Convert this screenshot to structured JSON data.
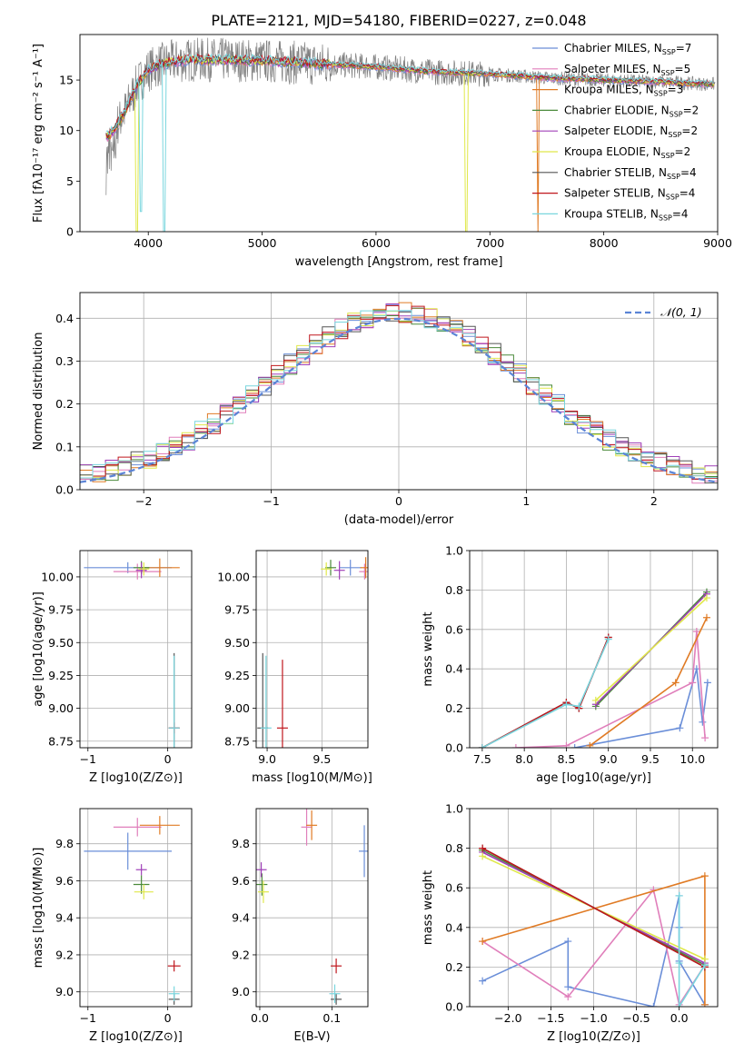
{
  "title": "PLATE=2121, MJD=54180, FIBERID=0227, z=0.048",
  "colors": {
    "c1": "#6a8ed8",
    "c2": "#e07fbb",
    "c3": "#e07b25",
    "c4": "#4a8a3a",
    "c5": "#a040b8",
    "c6": "#e0e84a",
    "c7": "#555555",
    "c8": "#c0171d",
    "c9": "#79d6de"
  },
  "series": [
    {
      "name": "Chabrier MILES",
      "nssp": "7",
      "color": "c1"
    },
    {
      "name": "Salpeter MILES",
      "nssp": "5",
      "color": "c2"
    },
    {
      "name": "Kroupa MILES",
      "nssp": "3",
      "color": "c3"
    },
    {
      "name": "Chabrier ELODIE",
      "nssp": "2",
      "color": "c4"
    },
    {
      "name": "Salpeter ELODIE",
      "nssp": "2",
      "color": "c5"
    },
    {
      "name": "Kroupa ELODIE",
      "nssp": "2",
      "color": "c6"
    },
    {
      "name": "Chabrier STELIB",
      "nssp": "4",
      "color": "c7"
    },
    {
      "name": "Salpeter STELIB",
      "nssp": "4",
      "color": "c8"
    },
    {
      "name": "Kroupa STELIB",
      "nssp": "4",
      "color": "c9"
    }
  ],
  "chart_data": [
    {
      "id": "spectrum",
      "type": "line",
      "xlabel": "wavelength [Angstrom, rest frame]",
      "ylabel": "Flux [fλ10⁻¹⁷ erg cm⁻² s⁻¹ A⁻¹]",
      "xlim": [
        3400,
        9000
      ],
      "ylim": [
        0,
        19.5
      ],
      "xticks": [
        4000,
        5000,
        6000,
        7000,
        8000,
        9000
      ],
      "yticks": [
        0,
        5,
        10,
        15
      ],
      "legend": "top-right",
      "spectrum_profile": {
        "x": [
          3650,
          3700,
          3800,
          3900,
          4000,
          4100,
          4200,
          4400,
          4700,
          5000,
          5500,
          6000,
          6500,
          7000,
          7500,
          8000,
          8500,
          8900
        ],
        "y": [
          9.5,
          10.0,
          12.0,
          14.5,
          16.0,
          16.5,
          16.8,
          17.0,
          17.0,
          16.9,
          16.6,
          16.3,
          15.8,
          15.6,
          15.2,
          15.0,
          14.8,
          14.6
        ]
      },
      "dips": [
        {
          "x": 3900,
          "y": 0.0,
          "series": "Kroupa ELODIE"
        },
        {
          "x": 3935,
          "y": 2.0,
          "series": "Kroupa STELIB"
        },
        {
          "x": 4140,
          "y": 0.0,
          "series": "Kroupa STELIB"
        },
        {
          "x": 6795,
          "y": 0.0,
          "series": "Kroupa ELODIE"
        },
        {
          "x": 7420,
          "y": 0.0,
          "series": "Kroupa MILES"
        }
      ]
    },
    {
      "id": "residuals",
      "type": "line",
      "xlabel": "(data-model)/error",
      "ylabel": "Normed distribution",
      "xlim": [
        -2.5,
        2.5
      ],
      "ylim": [
        0,
        0.46
      ],
      "xticks": [
        -2,
        -1,
        0,
        1,
        2
      ],
      "yticks": [
        0.0,
        0.1,
        0.2,
        0.3,
        0.4
      ],
      "reference": "N(0,1)",
      "bin_width": 0.1
    },
    {
      "id": "age-vs-Z",
      "type": "scatter",
      "xlabel": "Z [log10(Z/Z⊙)]",
      "ylabel": "age [log10(age/yr)]",
      "xlim": [
        -1.1,
        0.3
      ],
      "ylim": [
        8.7,
        10.2
      ],
      "xticks": [
        -1,
        0
      ],
      "yticks": [
        8.75,
        9.0,
        9.25,
        9.5,
        9.75,
        10.0
      ],
      "points": [
        {
          "x": -0.5,
          "y": 10.07,
          "xerr": 0.55,
          "yerr": 0.0,
          "color": "c1"
        },
        {
          "x": -0.38,
          "y": 10.04,
          "xerr": 0.3,
          "yerr": 0.06,
          "color": "c2"
        },
        {
          "x": -0.1,
          "y": 10.07,
          "xerr": 0.25,
          "yerr": 0.07,
          "color": "c3"
        },
        {
          "x": -0.33,
          "y": 10.07,
          "xerr": 0.1,
          "yerr": 0.05,
          "color": "c4"
        },
        {
          "x": -0.33,
          "y": 10.05,
          "xerr": 0.06,
          "yerr": 0.06,
          "color": "c5"
        },
        {
          "x": -0.3,
          "y": 10.06,
          "xerr": 0.06,
          "yerr": 0.05,
          "color": "c6"
        },
        {
          "x": 0.08,
          "y": 8.85,
          "xerr": 0.03,
          "yerr": 0.57,
          "color": "c7"
        },
        {
          "x": 0.08,
          "y": 8.85,
          "xerr": 0.05,
          "yerr": 0.0,
          "color": "c8"
        },
        {
          "x": 0.08,
          "y": 8.85,
          "xerr": 0.03,
          "yerr": 0.55,
          "color": "c9"
        }
      ]
    },
    {
      "id": "age-vs-mass",
      "type": "scatter",
      "xlabel": "mass [log10(M/M⊙)]",
      "ylabel": "",
      "xlim": [
        8.9,
        9.92
      ],
      "ylim": [
        8.7,
        10.2
      ],
      "xticks": [
        9.0,
        9.5
      ],
      "yticks": [
        8.75,
        9.0,
        9.25,
        9.5,
        9.75,
        10.0
      ],
      "points": [
        {
          "x": 9.76,
          "y": 10.07,
          "xerr": 0.1,
          "yerr": 0.06,
          "color": "c1"
        },
        {
          "x": 9.89,
          "y": 10.04,
          "xerr": 0.05,
          "yerr": 0.06,
          "color": "c2"
        },
        {
          "x": 9.9,
          "y": 10.07,
          "xerr": 0.05,
          "yerr": 0.08,
          "color": "c3"
        },
        {
          "x": 9.58,
          "y": 10.07,
          "xerr": 0.05,
          "yerr": 0.06,
          "color": "c4"
        },
        {
          "x": 9.66,
          "y": 10.05,
          "xerr": 0.03,
          "yerr": 0.07,
          "color": "c5"
        },
        {
          "x": 9.54,
          "y": 10.06,
          "xerr": 0.04,
          "yerr": 0.05,
          "color": "c6"
        },
        {
          "x": 8.96,
          "y": 8.85,
          "xerr": 0.02,
          "yerr": 0.57,
          "color": "c7"
        },
        {
          "x": 9.14,
          "y": 8.85,
          "xerr": 0.03,
          "yerr": 0.52,
          "color": "c8"
        },
        {
          "x": 8.99,
          "y": 8.85,
          "xerr": 0.04,
          "yerr": 0.55,
          "color": "c9"
        }
      ]
    },
    {
      "id": "mass-weight-vs-age",
      "type": "line",
      "xlabel": "age [log10(age/yr)]",
      "ylabel": "mass weight",
      "xlim": [
        7.35,
        10.3
      ],
      "ylim": [
        0,
        1.0
      ],
      "xticks": [
        7.5,
        8.0,
        8.5,
        9.0,
        9.5,
        10.0
      ],
      "yticks": [
        0.0,
        0.2,
        0.4,
        0.6,
        0.8,
        1.0
      ],
      "series": [
        {
          "name": "Chabrier MILES",
          "color": "c1",
          "x": [
            8.6,
            9.85,
            10.05,
            10.12,
            10.18
          ],
          "y": [
            0.0,
            0.1,
            0.4,
            0.13,
            0.33
          ]
        },
        {
          "name": "Salpeter MILES",
          "color": "c2",
          "x": [
            7.9,
            8.5,
            10.0,
            10.05,
            10.15
          ],
          "y": [
            0.0,
            0.01,
            0.33,
            0.59,
            0.05
          ]
        },
        {
          "name": "Kroupa MILES",
          "color": "c3",
          "x": [
            8.78,
            9.8,
            10.17
          ],
          "y": [
            0.01,
            0.33,
            0.66
          ]
        },
        {
          "name": "Chabrier ELODIE",
          "color": "c4",
          "x": [
            8.85,
            10.17
          ],
          "y": [
            0.21,
            0.79
          ]
        },
        {
          "name": "Salpeter ELODIE",
          "color": "c5",
          "x": [
            8.85,
            10.17
          ],
          "y": [
            0.22,
            0.78
          ]
        },
        {
          "name": "Kroupa ELODIE",
          "color": "c6",
          "x": [
            8.85,
            10.17
          ],
          "y": [
            0.24,
            0.76
          ]
        },
        {
          "name": "Chabrier STELIB",
          "color": "c7",
          "x": [
            7.5,
            8.5,
            8.65,
            9.0
          ],
          "y": [
            0.0,
            0.23,
            0.2,
            0.56
          ]
        },
        {
          "name": "Salpeter STELIB",
          "color": "c8",
          "x": [
            7.5,
            8.5,
            8.65,
            9.0
          ],
          "y": [
            0.0,
            0.23,
            0.2,
            0.56
          ]
        },
        {
          "name": "Kroupa STELIB",
          "color": "c9",
          "x": [
            7.5,
            8.5,
            8.65,
            9.0
          ],
          "y": [
            0.0,
            0.22,
            0.21,
            0.55
          ]
        }
      ]
    },
    {
      "id": "mass-vs-Z",
      "type": "scatter",
      "xlabel": "Z [log10(Z/Z⊙)]",
      "ylabel": "mass [log10(M/M⊙)]",
      "xlim": [
        -1.1,
        0.3
      ],
      "ylim": [
        8.92,
        9.99
      ],
      "xticks": [
        -1,
        0
      ],
      "yticks": [
        9.0,
        9.2,
        9.4,
        9.6,
        9.8
      ],
      "points": [
        {
          "x": -0.5,
          "y": 9.76,
          "xerr": 0.55,
          "yerr": 0.1,
          "color": "c1"
        },
        {
          "x": -0.38,
          "y": 9.89,
          "xerr": 0.3,
          "yerr": 0.05,
          "color": "c2"
        },
        {
          "x": -0.1,
          "y": 9.9,
          "xerr": 0.25,
          "yerr": 0.05,
          "color": "c3"
        },
        {
          "x": -0.33,
          "y": 9.58,
          "xerr": 0.1,
          "yerr": 0.05,
          "color": "c4"
        },
        {
          "x": -0.33,
          "y": 9.66,
          "xerr": 0.06,
          "yerr": 0.03,
          "color": "c5"
        },
        {
          "x": -0.3,
          "y": 9.54,
          "xerr": 0.12,
          "yerr": 0.04,
          "color": "c6"
        },
        {
          "x": 0.08,
          "y": 8.96,
          "xerr": 0.06,
          "yerr": 0.02,
          "color": "c7"
        },
        {
          "x": 0.08,
          "y": 9.14,
          "xerr": 0.08,
          "yerr": 0.03,
          "color": "c8"
        },
        {
          "x": 0.08,
          "y": 8.99,
          "xerr": 0.03,
          "yerr": 0.04,
          "color": "c9"
        }
      ]
    },
    {
      "id": "mass-vs-ebv",
      "type": "scatter",
      "xlabel": "E(B-V)",
      "ylabel": "",
      "xlim": [
        -0.005,
        0.15
      ],
      "ylim": [
        8.92,
        9.99
      ],
      "xticks": [
        0.0,
        0.1
      ],
      "yticks": [
        9.0,
        9.2,
        9.4,
        9.6,
        9.8
      ],
      "points": [
        {
          "x": 0.145,
          "y": 9.76,
          "xerr": 0.0,
          "yerr": 0.14,
          "color": "c1"
        },
        {
          "x": 0.065,
          "y": 9.89,
          "xerr": 0.0,
          "yerr": 0.1,
          "color": "c2"
        },
        {
          "x": 0.072,
          "y": 9.9,
          "xerr": 0.0,
          "yerr": 0.08,
          "color": "c3"
        },
        {
          "x": 0.003,
          "y": 9.58,
          "xerr": 0.0,
          "yerr": 0.06,
          "color": "c4"
        },
        {
          "x": 0.002,
          "y": 9.66,
          "xerr": 0.0,
          "yerr": 0.04,
          "color": "c5"
        },
        {
          "x": 0.005,
          "y": 9.54,
          "xerr": 0.0,
          "yerr": 0.06,
          "color": "c6"
        },
        {
          "x": 0.106,
          "y": 8.96,
          "xerr": 0.0,
          "yerr": 0.02,
          "color": "c7"
        },
        {
          "x": 0.106,
          "y": 9.14,
          "xerr": 0.0,
          "yerr": 0.04,
          "color": "c8"
        },
        {
          "x": 0.104,
          "y": 8.99,
          "xerr": 0.0,
          "yerr": 0.05,
          "color": "c9"
        }
      ]
    },
    {
      "id": "mass-weight-vs-Z",
      "type": "line",
      "xlabel": "Z [log10(Z/Z⊙)]",
      "ylabel": "mass weight",
      "xlim": [
        -2.45,
        0.45
      ],
      "ylim": [
        0,
        1.0
      ],
      "xticks": [
        -2.0,
        -1.5,
        -1.0,
        -0.5,
        0.0
      ],
      "yticks": [
        0.0,
        0.2,
        0.4,
        0.6,
        0.8,
        1.0
      ],
      "series": [
        {
          "name": "Chabrier MILES",
          "color": "c1",
          "x": [
            -2.3,
            -1.3,
            -1.3,
            -0.3,
            0.0,
            0.0,
            0.0,
            0.3
          ],
          "y": [
            0.13,
            0.33,
            0.1,
            0.0,
            0.56,
            0.4,
            0.23,
            0.01
          ]
        },
        {
          "name": "Salpeter MILES",
          "color": "c2",
          "x": [
            -2.3,
            -1.3,
            -0.3,
            0.0,
            0.3
          ],
          "y": [
            0.33,
            0.05,
            0.59,
            0.01,
            0.21
          ]
        },
        {
          "name": "Kroupa MILES",
          "color": "c3",
          "x": [
            -2.3,
            0.3,
            0.3
          ],
          "y": [
            0.33,
            0.66,
            0.01
          ]
        },
        {
          "name": "Chabrier ELODIE",
          "color": "c4",
          "x": [
            -2.3,
            0.3
          ],
          "y": [
            0.79,
            0.21
          ]
        },
        {
          "name": "Salpeter ELODIE",
          "color": "c5",
          "x": [
            -2.3,
            0.3
          ],
          "y": [
            0.78,
            0.22
          ]
        },
        {
          "name": "Kroupa ELODIE",
          "color": "c6",
          "x": [
            -2.3,
            0.3
          ],
          "y": [
            0.76,
            0.24
          ]
        },
        {
          "name": "Chabrier STELIB",
          "color": "c7",
          "x": [
            -2.3,
            0.3
          ],
          "y": [
            0.8,
            0.2
          ]
        },
        {
          "name": "Salpeter STELIB",
          "color": "c8",
          "x": [
            -2.3,
            0.3
          ],
          "y": [
            0.8,
            0.2
          ]
        },
        {
          "name": "Kroupa STELIB",
          "color": "c9",
          "x": [
            0.0,
            0.0,
            0.0,
            0.3
          ],
          "y": [
            0.56,
            0.22,
            0.0,
            0.21
          ]
        }
      ]
    }
  ]
}
